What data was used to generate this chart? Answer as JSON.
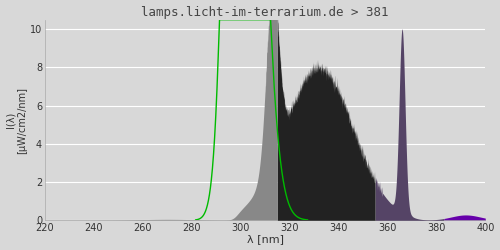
{
  "title": "lamps.licht-im-terrarium.de > 381",
  "xlabel": "λ [nm]",
  "ylabel": "I(λ)\n[µW/cm2/nm]",
  "xlim": [
    220,
    400
  ],
  "ylim": [
    0,
    10.5
  ],
  "yticks": [
    0,
    2,
    4,
    6,
    8,
    10
  ],
  "xticks": [
    220,
    240,
    260,
    280,
    300,
    320,
    340,
    360,
    380,
    400
  ],
  "background_color": "#d8d8d8",
  "plot_bg_color": "#d8d8d8",
  "grid_color": "#ffffff",
  "title_color": "#333333",
  "col_uvb": "#888888",
  "col_uva1": "#222222",
  "col_uva2": "#554466",
  "col_vis": "#6600aa",
  "col_green": "#00bb00",
  "boundary1": 315,
  "boundary2": 355,
  "boundary3": 383
}
